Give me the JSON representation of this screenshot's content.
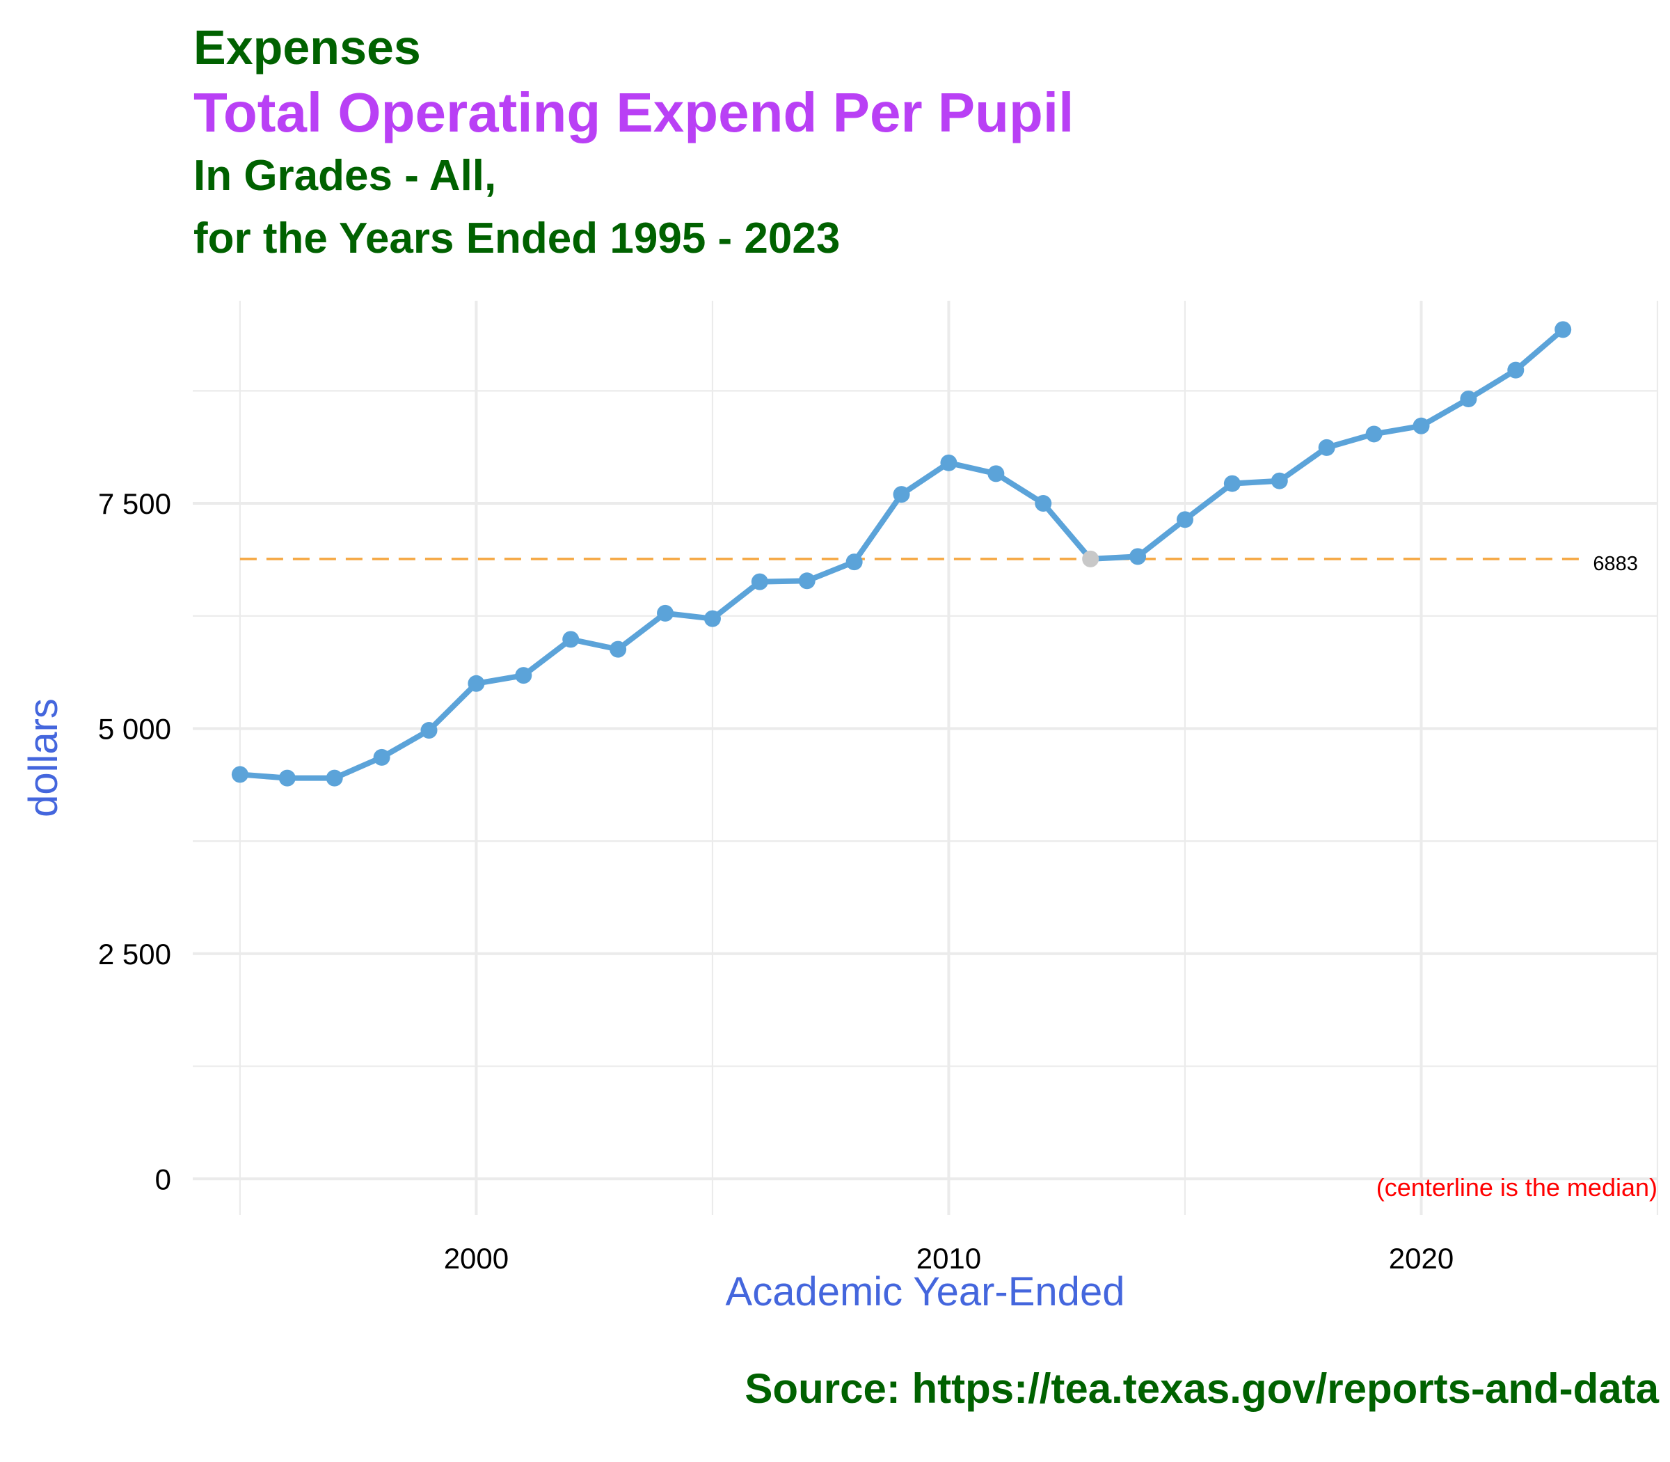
{
  "title": {
    "line1": "Expenses",
    "line2": "Total Operating Expend Per Pupil",
    "line3": "In Grades - All,",
    "line4": "for the Years Ended 1995 - 2023"
  },
  "colors": {
    "title_green": "#006100",
    "title_purple": "#b940f5",
    "axis_label": "#4466dd",
    "line": "#5ba3d9",
    "highlight_point": "#c8c8c8",
    "median_line": "#f5a742",
    "note": "#ff0000",
    "grid": "#ebebeb"
  },
  "chart_data": {
    "type": "line",
    "xlabel": "Academic Year-Ended",
    "ylabel": "dollars",
    "xlim": [
      1994,
      2025
    ],
    "ylim": [
      -400,
      9750
    ],
    "x_ticks": [
      2000,
      2010,
      2020
    ],
    "x_tick_labels": [
      "2000",
      "2010",
      "2020"
    ],
    "y_ticks": [
      0,
      2500,
      5000,
      7500
    ],
    "y_tick_labels": [
      "0",
      "2 500",
      "5 000",
      "7 500"
    ],
    "grid": true,
    "x": [
      1995,
      1996,
      1997,
      1998,
      1999,
      2000,
      2001,
      2002,
      2003,
      2004,
      2005,
      2006,
      2007,
      2008,
      2009,
      2010,
      2011,
      2012,
      2013,
      2014,
      2015,
      2016,
      2017,
      2018,
      2019,
      2020,
      2021,
      2022,
      2023
    ],
    "y": [
      4490,
      4450,
      4450,
      4680,
      4980,
      5500,
      5590,
      5990,
      5880,
      6280,
      6220,
      6630,
      6640,
      6850,
      7600,
      7950,
      7830,
      7500,
      6883,
      6910,
      7320,
      7720,
      7750,
      8120,
      8270,
      8360,
      8660,
      8980,
      9430
    ],
    "highlight_index": 18,
    "median": 6883,
    "median_label": "6883",
    "note": "(centerline is the median)"
  },
  "source": "Source:  https://tea.texas.gov/reports-and-data"
}
